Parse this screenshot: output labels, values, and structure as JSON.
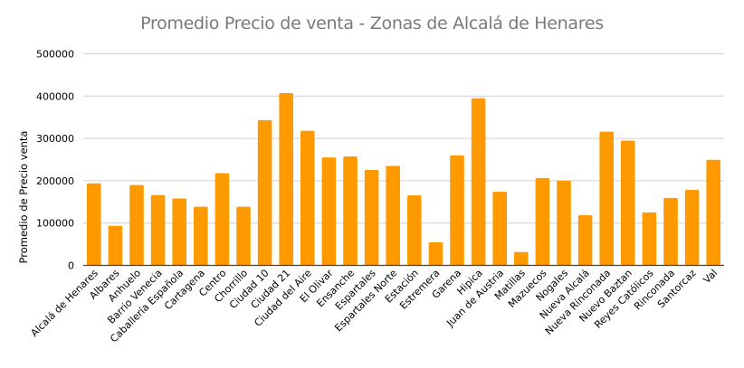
{
  "chart_data": {
    "type": "bar",
    "title": "Promedio Precio de venta - Zonas de Alcalá de Henares",
    "xlabel": "",
    "ylabel": "Promedio de Precio venta",
    "ylim": [
      0,
      500000
    ],
    "yticks": [
      0,
      100000,
      200000,
      300000,
      400000,
      500000
    ],
    "grid": true,
    "legend": "none",
    "bar_color": "#FF9900",
    "categories": [
      "Alcalá de Henares",
      "Albares",
      "Anhuelo",
      "Barrio Venecia",
      "Caballería Española",
      "Cartagena",
      "Centro",
      "Chorrillo",
      "Ciudad 10",
      "Ciudad 21",
      "Ciudad del Aire",
      "El Olivar",
      "Ensanche",
      "Espartales",
      "Espartales Norte",
      "Estación",
      "Estremera",
      "Garena",
      "Hipica",
      "Juan de Austria",
      "Matillas",
      "Mazuecos",
      "Nogales",
      "Nueva Alcalá",
      "Nueva Rinconada",
      "Nuevo Baztan",
      "Reyes Católicos",
      "Rinconada",
      "Santorcaz",
      "Val"
    ],
    "values": [
      194000,
      93500,
      190000,
      166000,
      158000,
      138500,
      218000,
      138500,
      343000,
      407000,
      318000,
      255000,
      257500,
      225500,
      235000,
      165500,
      54500,
      260000,
      395000,
      174000,
      31500,
      206500,
      200000,
      118500,
      316000,
      295000,
      125000,
      159500,
      178500,
      249500
    ]
  }
}
